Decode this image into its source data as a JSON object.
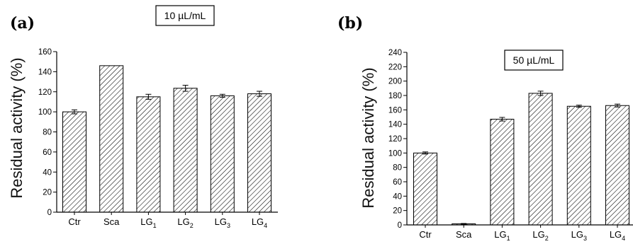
{
  "chart_data": [
    {
      "type": "bar",
      "panel_label": "(a)",
      "annotation": "10 µL/mL",
      "ylabel": "Residual activity (%)",
      "xlabel": "",
      "categories": [
        {
          "main": "Ctr",
          "sub": ""
        },
        {
          "main": "Sca",
          "sub": ""
        },
        {
          "main": "LG",
          "sub": "1"
        },
        {
          "main": "LG",
          "sub": "2"
        },
        {
          "main": "LG",
          "sub": "3"
        },
        {
          "main": "LG",
          "sub": "4"
        }
      ],
      "values": [
        100,
        146,
        115,
        123.5,
        116,
        118
      ],
      "errors": [
        2,
        0,
        2.5,
        3,
        1.5,
        2.5
      ],
      "ylim": [
        0,
        160
      ],
      "yticks": [
        "0",
        "20",
        "40",
        "60",
        "80",
        "100",
        "120",
        "140",
        "160"
      ]
    },
    {
      "type": "bar",
      "panel_label": "(b)",
      "annotation": "50 µL/mL",
      "ylabel": "Residual activity (%)",
      "xlabel": "",
      "categories": [
        {
          "main": "Ctr",
          "sub": ""
        },
        {
          "main": "Sca",
          "sub": ""
        },
        {
          "main": "LG",
          "sub": "1"
        },
        {
          "main": "LG",
          "sub": "2"
        },
        {
          "main": "LG",
          "sub": "3"
        },
        {
          "main": "LG",
          "sub": "4"
        }
      ],
      "values": [
        100,
        1.5,
        147,
        183,
        165,
        166
      ],
      "errors": [
        1.5,
        0.5,
        2.5,
        3,
        1.5,
        2
      ],
      "ylim": [
        0,
        240
      ],
      "yticks": [
        "0",
        "20",
        "40",
        "60",
        "80",
        "100",
        "120",
        "140",
        "160",
        "180",
        "200",
        "220",
        "240"
      ]
    }
  ]
}
